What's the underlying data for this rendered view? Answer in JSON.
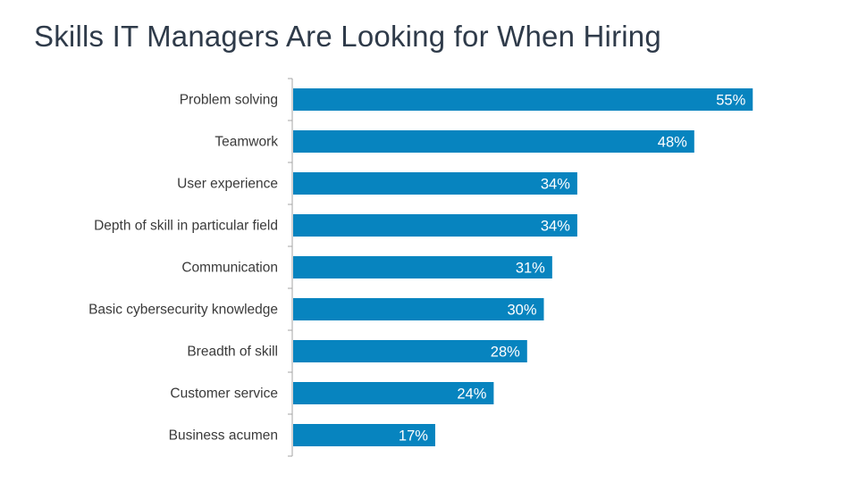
{
  "slide": {
    "title": "Skills IT Managers Are Looking for When Hiring"
  },
  "colors": {
    "bar": "#0784bf",
    "value_label": "#ffffff",
    "category_label": "#3a3a3a",
    "axis": "#a6a6a6",
    "title": "#2f3b4a"
  },
  "chart_data": {
    "type": "bar",
    "orientation": "horizontal",
    "title": "Skills IT Managers Are Looking for When Hiring",
    "xlabel": "",
    "ylabel": "",
    "value_suffix": "%",
    "xlim": [
      0,
      60
    ],
    "grid": false,
    "legend": "none",
    "categories": [
      "Problem solving",
      "Teamwork",
      "User experience",
      "Depth of skill in particular field",
      "Communication",
      "Basic cybersecurity knowledge",
      "Breadth of skill",
      "Customer service",
      "Business acumen"
    ],
    "values": [
      55,
      48,
      34,
      34,
      31,
      30,
      28,
      24,
      17
    ],
    "value_labels": [
      "55%",
      "48%",
      "34%",
      "34%",
      "31%",
      "30%",
      "28%",
      "24%",
      "17%"
    ]
  }
}
